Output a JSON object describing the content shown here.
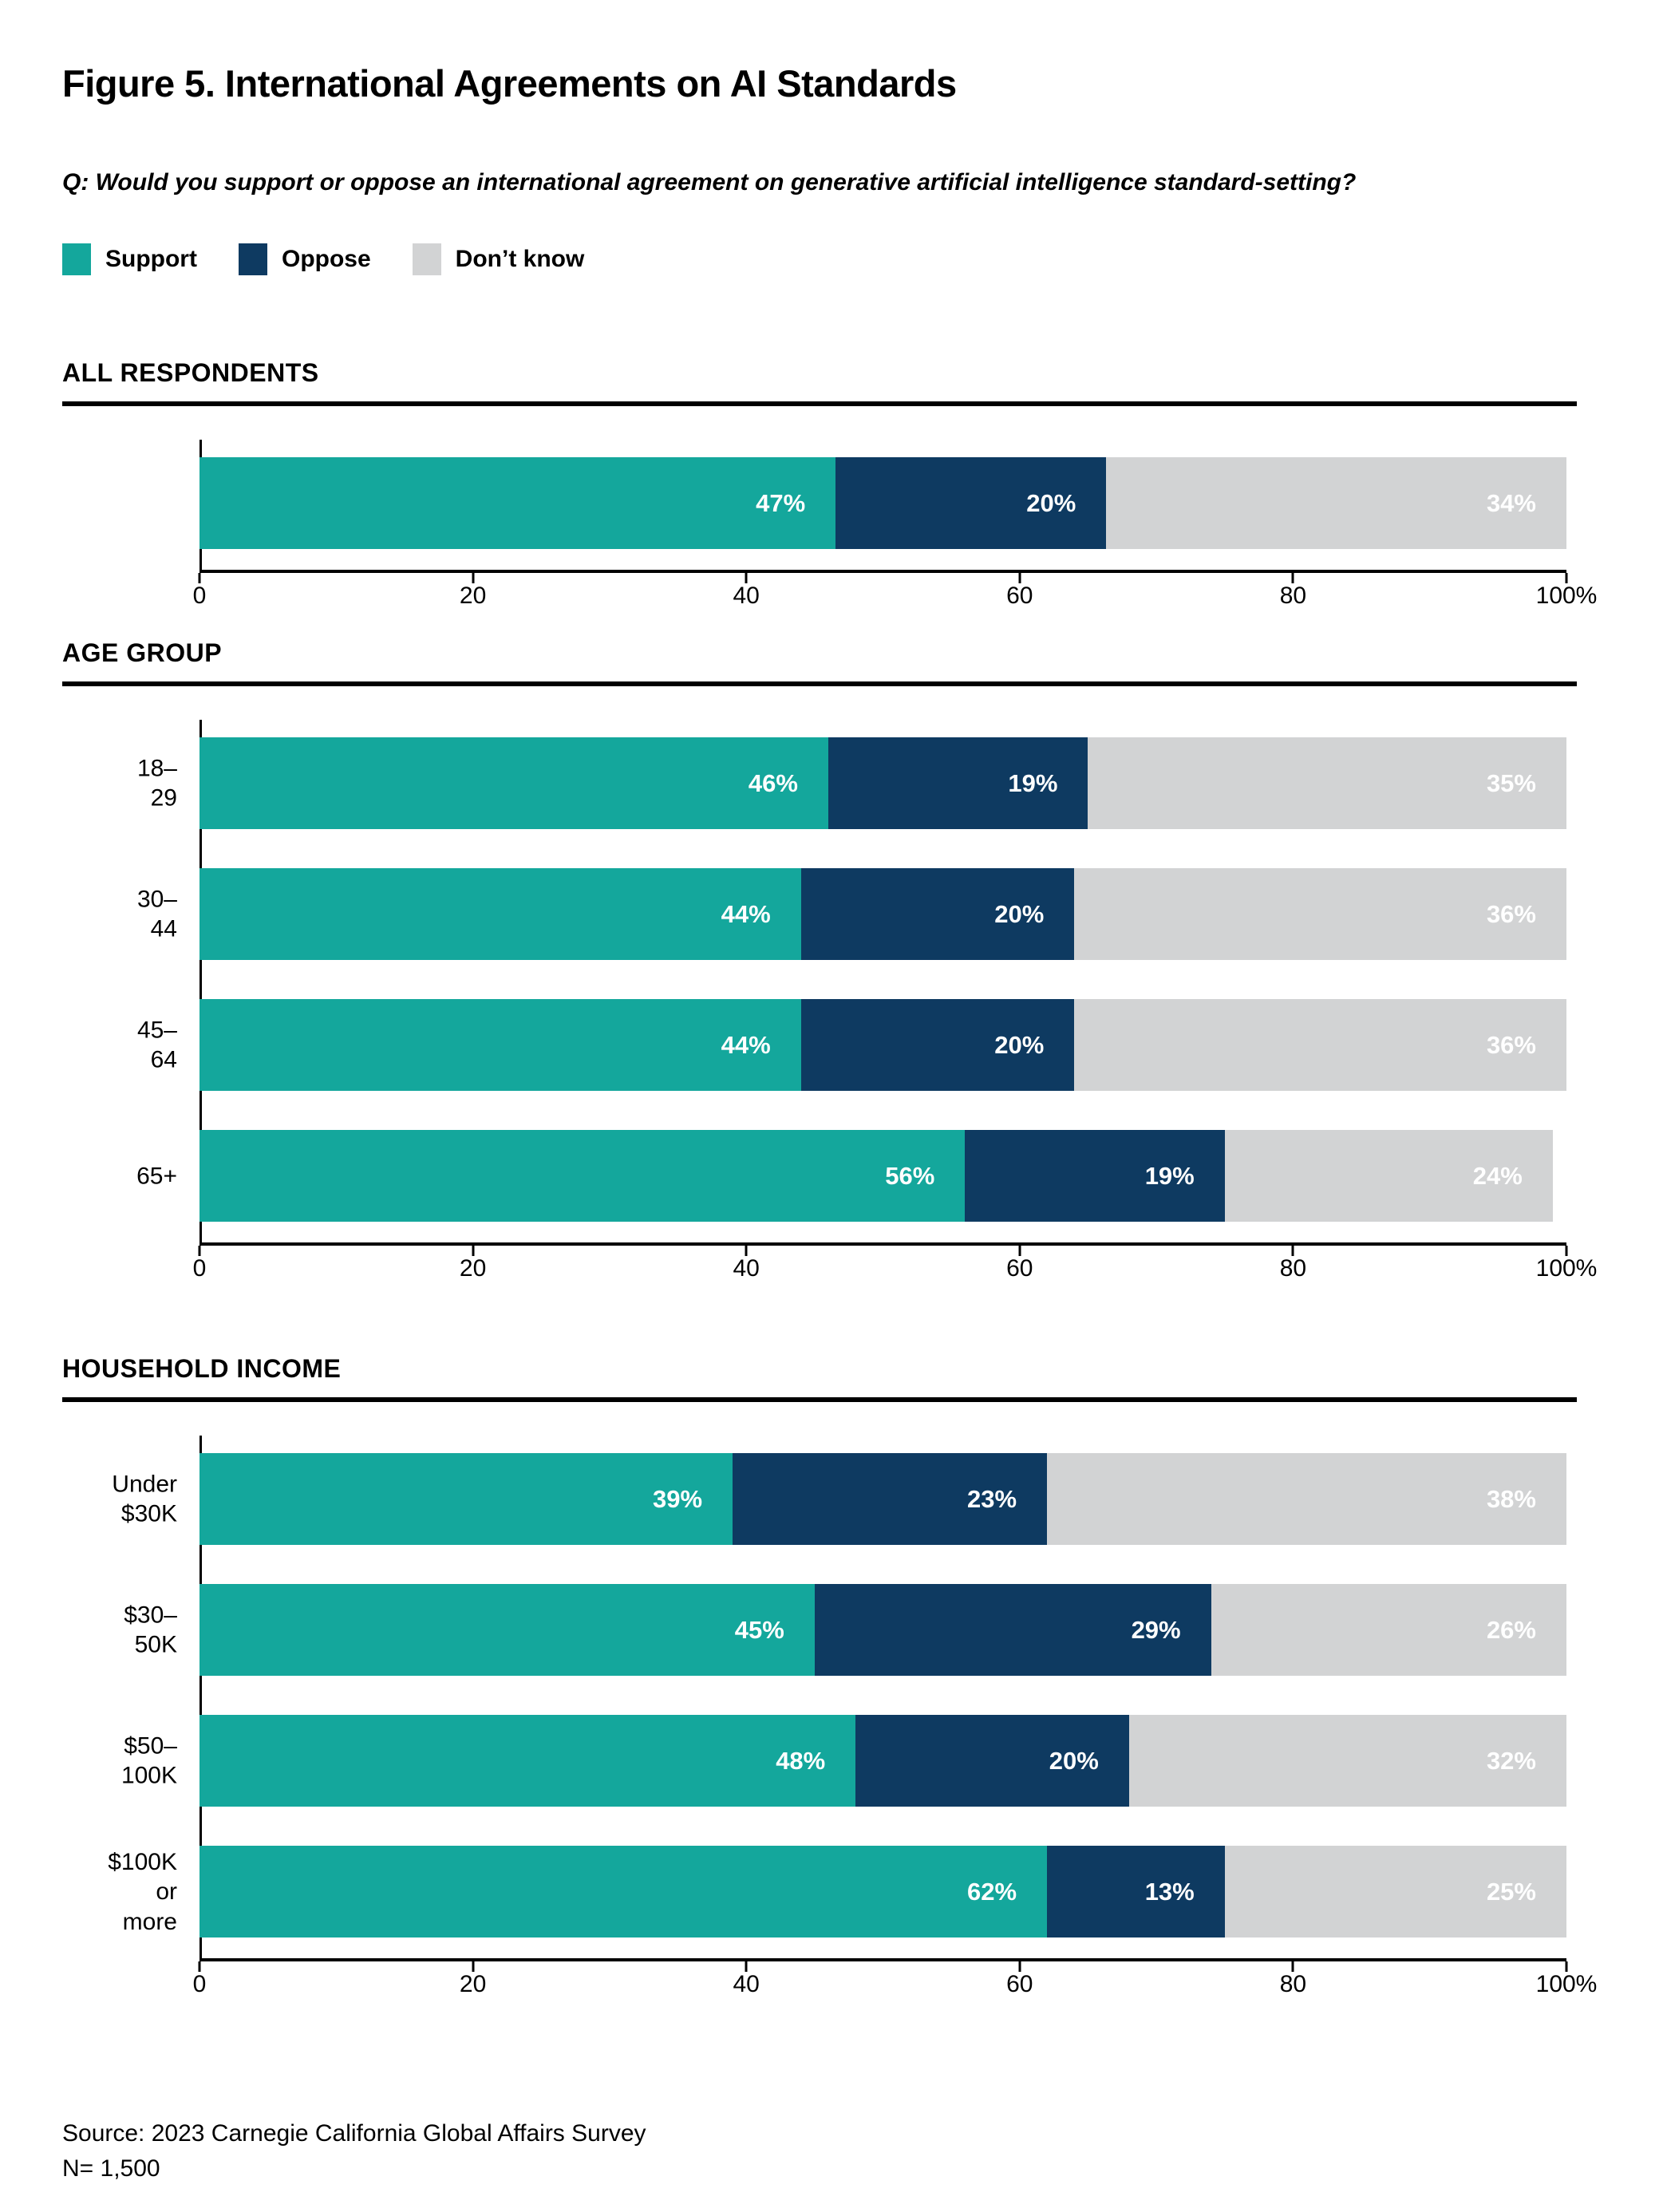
{
  "page": {
    "title": "Figure 5. International Agreements on AI Standards",
    "question": "Q: Would you support or oppose an international agreement on generative artificial intelligence standard-setting?",
    "source": "Source: 2023 Carnegie California Global Affairs Survey",
    "n_label": "N= 1,500"
  },
  "legend": [
    {
      "label": "Support",
      "color": "#14A79C"
    },
    {
      "label": "Oppose",
      "color": "#0E3A61"
    },
    {
      "label": "Don’t know",
      "color": "#D2D3D4"
    }
  ],
  "axis": {
    "min": 0,
    "max": 100,
    "ticks": [
      "0",
      "20",
      "40",
      "60",
      "80",
      "100%"
    ],
    "tick_positions": [
      0,
      20,
      40,
      60,
      80,
      100
    ]
  },
  "chart_data": [
    {
      "type": "bar",
      "stacked": true,
      "orientation": "horizontal",
      "section": "ALL RESPONDENTS",
      "series_names": [
        "Support",
        "Oppose",
        "Don’t know"
      ],
      "xlim": [
        0,
        100
      ],
      "rows": [
        {
          "label": "",
          "values": [
            47,
            20,
            34
          ]
        }
      ]
    },
    {
      "type": "bar",
      "stacked": true,
      "orientation": "horizontal",
      "section": "AGE GROUP",
      "series_names": [
        "Support",
        "Oppose",
        "Don’t know"
      ],
      "xlim": [
        0,
        100
      ],
      "rows": [
        {
          "label": "18–29",
          "values": [
            46,
            19,
            35
          ]
        },
        {
          "label": "30–44",
          "values": [
            44,
            20,
            36
          ]
        },
        {
          "label": "45–64",
          "values": [
            44,
            20,
            36
          ]
        },
        {
          "label": "65+",
          "values": [
            56,
            19,
            24
          ]
        }
      ]
    },
    {
      "type": "bar",
      "stacked": true,
      "orientation": "horizontal",
      "section": "HOUSEHOLD INCOME",
      "series_names": [
        "Support",
        "Oppose",
        "Don’t know"
      ],
      "xlim": [
        0,
        100
      ],
      "rows": [
        {
          "label": "Under $30K",
          "values": [
            39,
            23,
            38
          ]
        },
        {
          "label": "$30–50K",
          "values": [
            45,
            29,
            26
          ]
        },
        {
          "label": "$50–100K",
          "values": [
            48,
            20,
            32
          ]
        },
        {
          "label": "$100K\nor more",
          "values": [
            62,
            13,
            25
          ]
        }
      ]
    }
  ]
}
